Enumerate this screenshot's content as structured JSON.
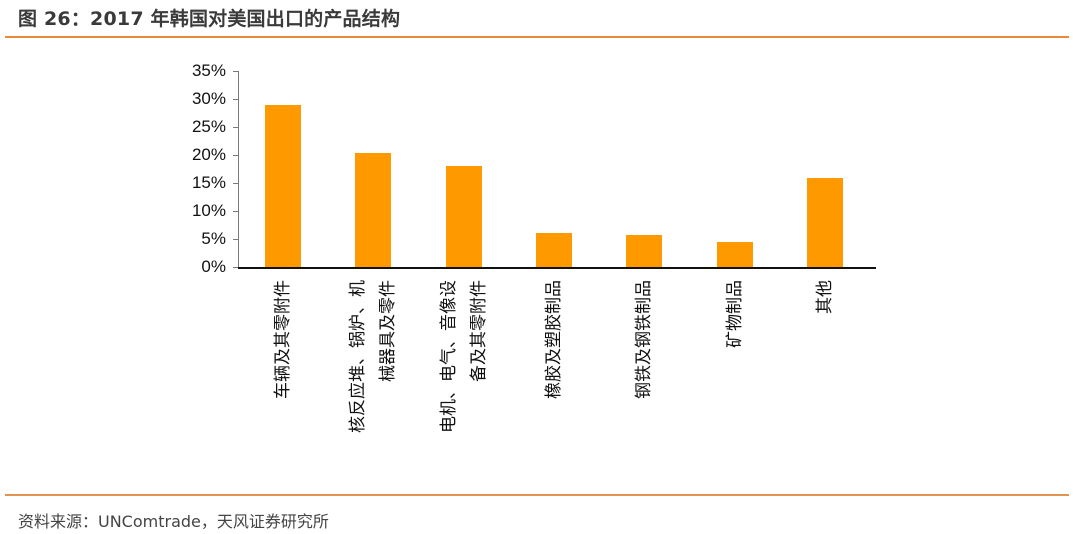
{
  "header": {
    "title": "图 26：2017 年韩国对美国出口的产品结构"
  },
  "footer": {
    "source": "资料来源：UNComtrade，天风证券研究所"
  },
  "colors": {
    "bar": "#ff9900",
    "rule": "#e8893a"
  },
  "chart_data": {
    "type": "bar",
    "title": "2017 年韩国对美国出口的产品结构",
    "xlabel": "",
    "ylabel": "",
    "ylim": [
      0,
      0.35
    ],
    "y_ticks": [
      "0%",
      "5%",
      "10%",
      "15%",
      "20%",
      "25%",
      "30%",
      "35%"
    ],
    "grid": false,
    "legend": "none",
    "categories": [
      "车辆及其零附件",
      "核反应堆、锅炉、机械器具及零件",
      "电机、电气、音像设备及其零附件",
      "橡胶及塑胶制品",
      "钢铁及钢铁制品",
      "矿物制品",
      "其他"
    ],
    "category_label_lines": [
      [
        "车辆及其零附件"
      ],
      [
        "核反应堆、锅炉、机",
        "械器具及零件"
      ],
      [
        "电机、电气、音像设",
        "备及其零附件"
      ],
      [
        "橡胶及塑胶制品"
      ],
      [
        "钢铁及钢铁制品"
      ],
      [
        "矿物制品"
      ],
      [
        "其他"
      ]
    ],
    "values": [
      0.289,
      0.204,
      0.18,
      0.061,
      0.057,
      0.045,
      0.159
    ]
  }
}
